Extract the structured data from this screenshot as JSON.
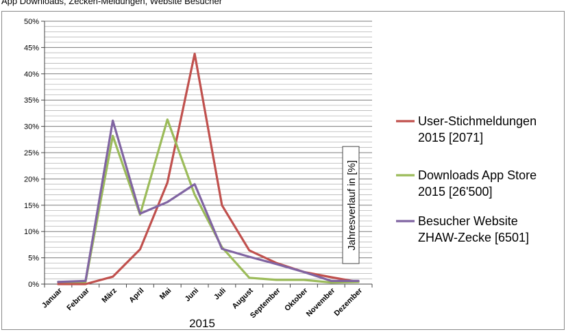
{
  "caption": "App Downloads, Zecken-Meldungen, Website Besucher",
  "colors": {
    "stich": "#c0504d",
    "downloads": "#9bbb59",
    "besucher": "#8064a2"
  },
  "chart_data": {
    "type": "line",
    "title": "",
    "xlabel": "2015",
    "ylabel": "Jahresverlauf in [%]",
    "ylim": [
      0,
      50
    ],
    "yticks": [
      "0%",
      "5%",
      "10%",
      "15%",
      "20%",
      "25%",
      "30%",
      "35%",
      "40%",
      "45%",
      "50%"
    ],
    "categories": [
      "Januar",
      "Februar",
      "März",
      "April",
      "Mai",
      "Juni",
      "Juli",
      "August",
      "September",
      "Oktober",
      "November",
      "Dezember"
    ],
    "legend_position": "right",
    "grid": true,
    "series": [
      {
        "name": "User-Stichmeldungen 2015 [2071]",
        "color": "#c0504d",
        "values": [
          0.0,
          0.0,
          1.4,
          6.6,
          19.3,
          43.8,
          15.0,
          6.4,
          4.0,
          2.3,
          1.3,
          0.4
        ]
      },
      {
        "name": "Downloads App Store 2015 [26'500]",
        "color": "#9bbb59",
        "values": [
          0.4,
          0.4,
          28.2,
          13.2,
          31.3,
          17.0,
          7.0,
          1.2,
          0.8,
          0.8,
          0.3,
          0.4
        ]
      },
      {
        "name": "Besucher Website ZHAW-Zecke [6501]",
        "color": "#8064a2",
        "values": [
          0.4,
          0.6,
          31.1,
          13.4,
          15.6,
          19.0,
          6.7,
          5.2,
          3.8,
          2.3,
          0.6,
          0.6
        ]
      }
    ]
  }
}
